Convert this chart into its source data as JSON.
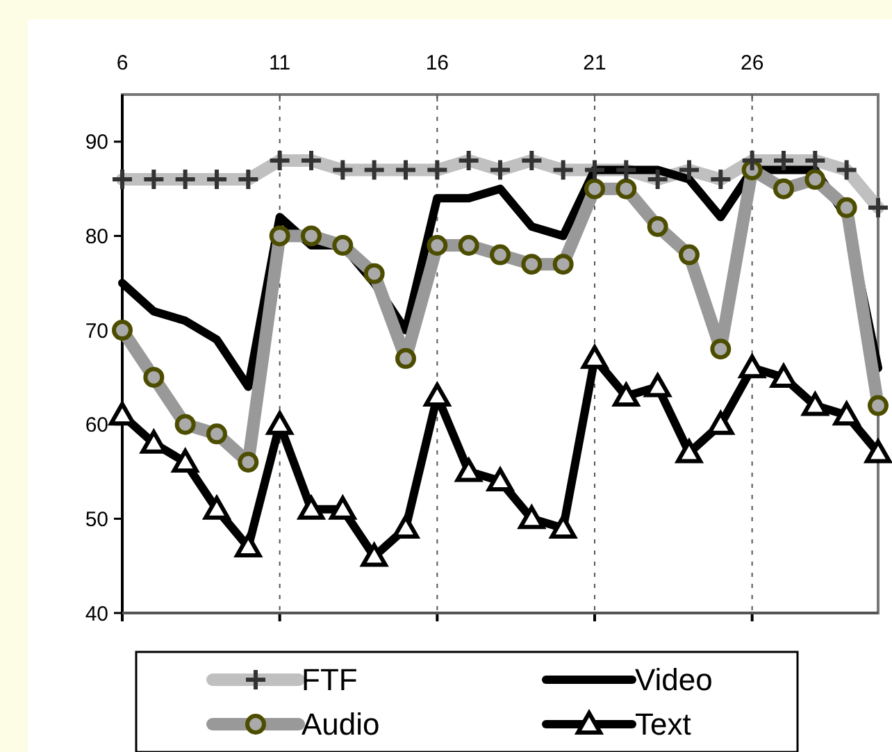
{
  "chart_data": {
    "type": "line",
    "x": [
      6,
      7,
      8,
      9,
      10,
      11,
      12,
      13,
      14,
      15,
      16,
      17,
      18,
      19,
      20,
      21,
      22,
      23,
      24,
      25,
      26,
      27,
      28,
      29,
      30
    ],
    "xlim": [
      6,
      30
    ],
    "xticks": [
      6,
      11,
      16,
      21,
      26
    ],
    "ylim": [
      40,
      95
    ],
    "yticks": [
      40,
      50,
      60,
      70,
      80,
      90
    ],
    "grid": "x",
    "legend": "bottom",
    "series": [
      {
        "name": "FTF",
        "color": "#c0c0c0",
        "marker": "cross",
        "values": [
          86,
          86,
          86,
          86,
          86,
          88,
          88,
          87,
          87,
          87,
          87,
          88,
          87,
          88,
          87,
          87,
          87,
          86,
          87,
          86,
          88,
          88,
          88,
          87,
          83
        ]
      },
      {
        "name": "Video",
        "color": "#000000",
        "marker": "none",
        "values": [
          75,
          72,
          71,
          69,
          64,
          82,
          79,
          79,
          75,
          70,
          84,
          84,
          85,
          81,
          80,
          87,
          87,
          87,
          86,
          82,
          87,
          87,
          87,
          82,
          66
        ]
      },
      {
        "name": "Audio",
        "color": "#999999",
        "marker": "circle",
        "values": [
          70,
          65,
          60,
          59,
          56,
          80,
          80,
          79,
          76,
          67,
          79,
          79,
          78,
          77,
          77,
          85,
          85,
          81,
          78,
          68,
          87,
          85,
          86,
          83,
          62
        ]
      },
      {
        "name": "Text",
        "color": "#000000",
        "marker": "triangle",
        "values": [
          61,
          58,
          56,
          51,
          47,
          60,
          51,
          51,
          46,
          49,
          63,
          55,
          54,
          50,
          49,
          67,
          63,
          64,
          57,
          60,
          66,
          65,
          62,
          61,
          57
        ]
      }
    ]
  }
}
